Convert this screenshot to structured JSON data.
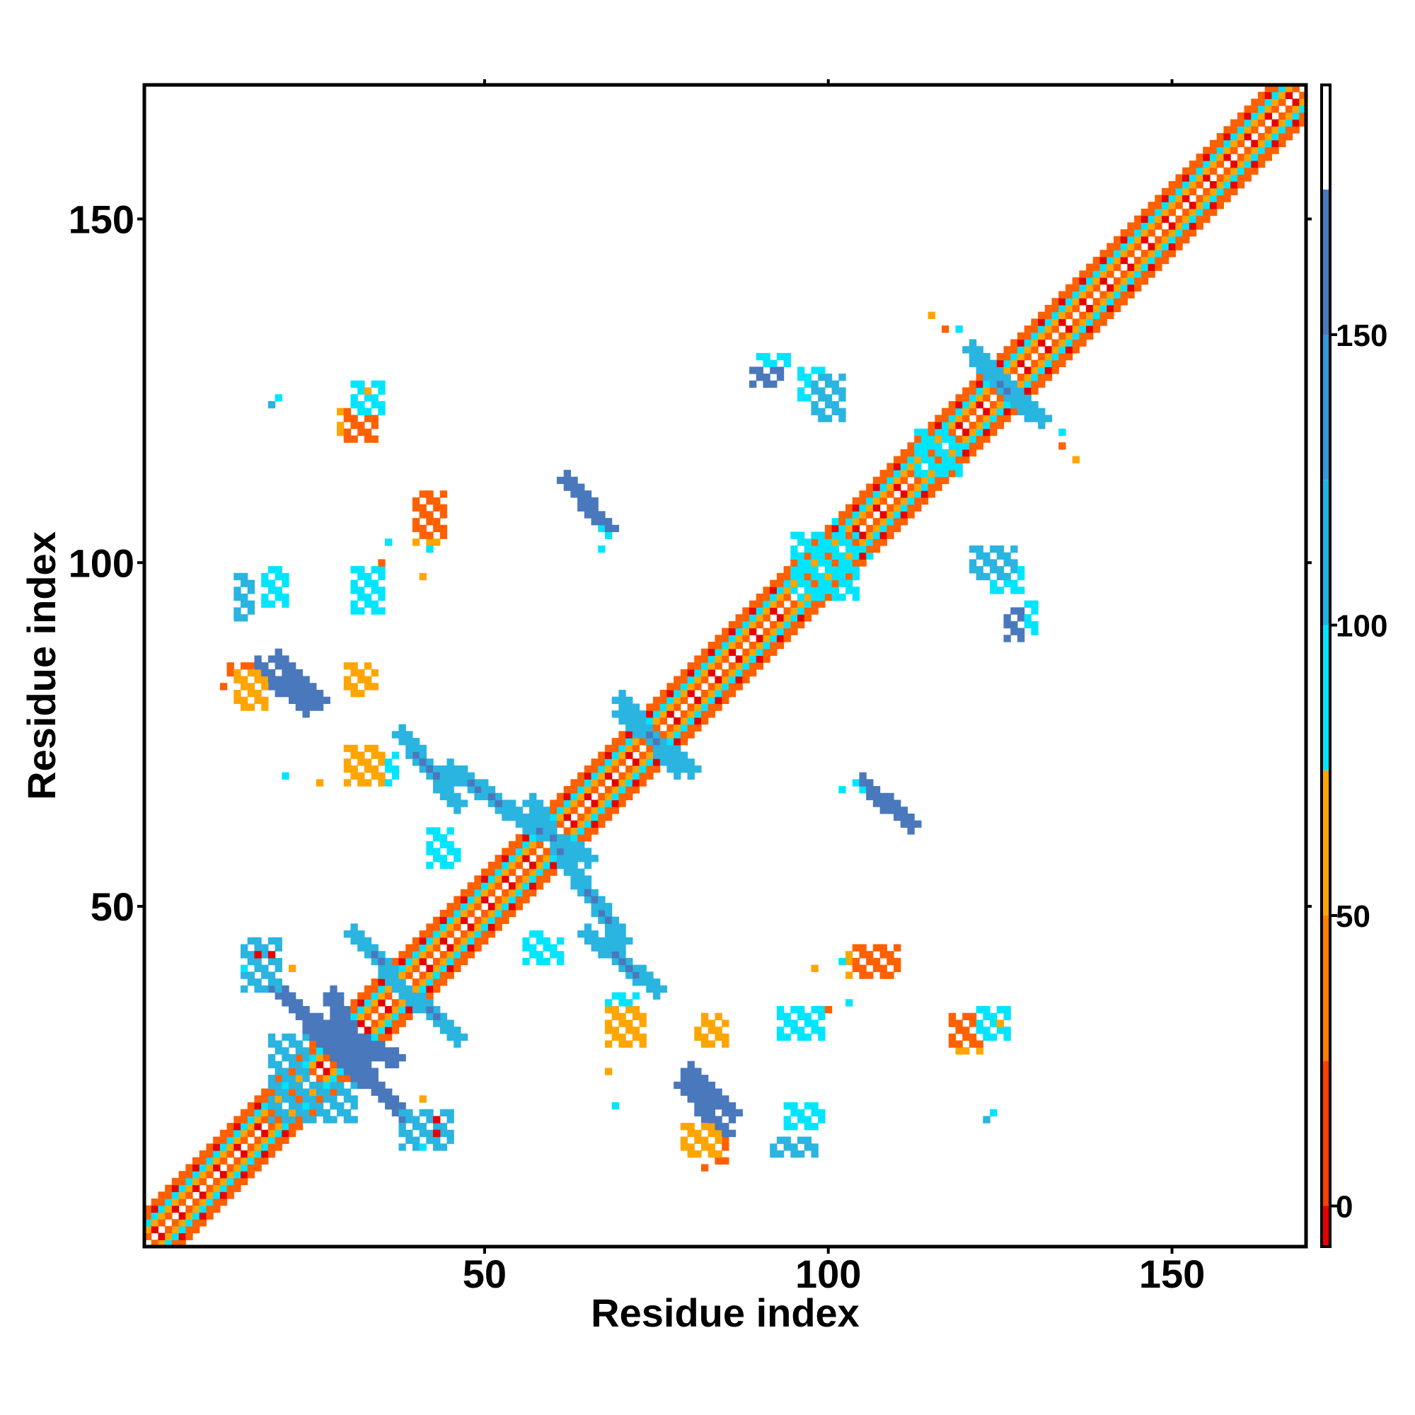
{
  "chart_data": {
    "type": "heatmap",
    "title": "",
    "xlabel": "Residue index",
    "ylabel": "Residue index",
    "xlim": [
      1,
      169
    ],
    "ylim": [
      1,
      169
    ],
    "x_ticks": [
      50,
      100,
      150
    ],
    "y_ticks": [
      50,
      100,
      150
    ],
    "grid": false,
    "symmetric": true,
    "colorbar": {
      "position": "right",
      "range": [
        -7,
        193
      ],
      "ticks": [
        0,
        50,
        100,
        150
      ],
      "bins": [
        {
          "from": -7,
          "to": 0,
          "color": "#e50000"
        },
        {
          "from": 0,
          "to": 25,
          "color": "#ff4000"
        },
        {
          "from": 25,
          "to": 50,
          "color": "#ff7f00"
        },
        {
          "from": 50,
          "to": 75,
          "color": "#ffa500"
        },
        {
          "from": 75,
          "to": 100,
          "color": "#00e5ff"
        },
        {
          "from": 100,
          "to": 125,
          "color": "#1eb4e6"
        },
        {
          "from": 125,
          "to": 150,
          "color": "#3399dd"
        },
        {
          "from": 150,
          "to": 175,
          "color": "#4a78bc"
        },
        {
          "from": 175,
          "to": 193,
          "color": "#ffffff"
        }
      ]
    },
    "colors": {
      "c0": "#ffffff",
      "c1": "#e50000",
      "c2": "#ff6000",
      "c3": "#ffa500",
      "c4": "#00e5ff",
      "c5": "#2ab4e0",
      "c6": "#4a78bc"
    },
    "diagonal_band": {
      "start": 1,
      "end": 169,
      "note": "pattern index per offset from diagonal (0 = self)",
      "pattern": [
        0,
        2,
        3,
        4,
        2,
        2
      ]
    },
    "blocks": [
      {
        "i": [
          19,
          24
        ],
        "j": [
          19,
          31
        ],
        "c": 5,
        "band": [
          13,
          19
        ]
      },
      {
        "i": [
          20,
          30
        ],
        "j": [
          27,
          38
        ],
        "c": 6,
        "anti": true
      },
      {
        "i": [
          28,
          33
        ],
        "j": [
          25,
          37
        ],
        "c": 6,
        "anti": true
      },
      {
        "i": [
          15,
          20
        ],
        "j": [
          38,
          45
        ],
        "c": 5
      },
      {
        "i": [
          31,
          40
        ],
        "j": [
          36,
          46
        ],
        "c": 5,
        "anti": true
      },
      {
        "i": [
          38,
          46
        ],
        "j": [
          65,
          75
        ],
        "c": 5,
        "anti": true
      },
      {
        "i": [
          20,
          26
        ],
        "j": [
          80,
          86
        ],
        "c": 6,
        "anti": true
      },
      {
        "i": [
          63,
          70
        ],
        "j": [
          45,
          55
        ],
        "c": 5,
        "anti": true
      },
      {
        "i": [
          79,
          85
        ],
        "j": [
          17,
          24
        ],
        "c": 6,
        "anti": true
      },
      {
        "i": [
          105,
          112
        ],
        "j": [
          62,
          68
        ],
        "c": 6,
        "anti": true
      },
      {
        "i": [
          62,
          68
        ],
        "j": [
          105,
          112
        ],
        "c": 6,
        "anti": true
      },
      {
        "i": [
          70,
          78
        ],
        "j": [
          70,
          80
        ],
        "c": 5,
        "anti": true
      },
      {
        "i": [
          57,
          63
        ],
        "j": [
          55,
          65
        ],
        "c": 5,
        "anti": true
      },
      {
        "i": [
          121,
          129
        ],
        "j": [
          122,
          131
        ],
        "c": 5,
        "anti": true
      },
      {
        "i": [
          113,
          118
        ],
        "j": [
          113,
          119
        ],
        "c": 4
      },
      {
        "i": [
          95,
          104
        ],
        "j": [
          96,
          104
        ],
        "c": 4
      },
      {
        "i": [
          90,
          94
        ],
        "j": [
          128,
          130
        ],
        "c": 4
      },
      {
        "i": [
          96,
          100
        ],
        "j": [
          124,
          128
        ],
        "c": 4
      },
      {
        "i": [
          121,
          127
        ],
        "j": [
          98,
          102
        ],
        "c": 5
      },
      {
        "i": [
          126,
          128
        ],
        "j": [
          89,
          93
        ],
        "c": 6
      },
      {
        "i": [
          94,
          99
        ],
        "j": [
          18,
          21
        ],
        "c": 4
      },
      {
        "i": [
          29,
          33
        ],
        "j": [
          118,
          122
        ],
        "c": 3
      },
      {
        "i": [
          40,
          44
        ],
        "j": [
          103,
          107
        ],
        "c": 3
      },
      {
        "i": [
          13,
          16
        ],
        "j": [
          83,
          85
        ],
        "c": 2
      },
      {
        "i": [
          30,
          33
        ],
        "j": [
          81,
          85
        ],
        "c": 3
      },
      {
        "i": [
          32,
          37
        ],
        "j": [
          68,
          72
        ],
        "c": 4
      },
      {
        "i": [
          42,
          45
        ],
        "j": [
          58,
          61
        ],
        "c": 4
      },
      {
        "i": [
          82,
          84
        ],
        "j": [
          30,
          34
        ],
        "c": 3
      },
      {
        "i": [
          68,
          73
        ],
        "j": [
          30,
          35
        ],
        "c": 3
      },
      {
        "i": [
          79,
          84
        ],
        "j": [
          14,
          18
        ],
        "c": 3
      },
      {
        "i": [
          92,
          98
        ],
        "j": [
          14,
          16
        ],
        "c": 5
      },
      {
        "i": [
          93,
          99
        ],
        "j": [
          31,
          35
        ],
        "c": 4
      },
      {
        "i": [
          104,
          110
        ],
        "j": [
          40,
          44
        ],
        "c": 2
      },
      {
        "i": [
          118,
          122
        ],
        "j": [
          30,
          34
        ],
        "c": 2
      },
      {
        "i": [
          122,
          126
        ],
        "j": [
          31,
          35
        ],
        "c": 4
      },
      {
        "i": [
          56,
          58
        ],
        "j": [
          42,
          46
        ],
        "c": 4
      }
    ],
    "dots": [
      {
        "i": 19,
        "j": 123,
        "c": 5
      },
      {
        "i": 17,
        "j": 43,
        "c": 1
      },
      {
        "i": 22,
        "j": 41,
        "c": 3
      },
      {
        "i": 68,
        "j": 26,
        "c": 3
      },
      {
        "i": 69,
        "j": 21,
        "c": 4
      },
      {
        "i": 75,
        "j": 76,
        "c": 2
      },
      {
        "i": 43,
        "j": 19,
        "c": 1
      },
      {
        "i": 41,
        "j": 15,
        "c": 4
      },
      {
        "i": 82,
        "j": 12,
        "c": 2
      },
      {
        "i": 124,
        "j": 20,
        "c": 4
      },
      {
        "i": 125,
        "j": 33,
        "c": 3
      },
      {
        "i": 98,
        "j": 41,
        "c": 3
      },
      {
        "i": 102,
        "j": 42,
        "c": 4
      },
      {
        "i": 117,
        "j": 134,
        "c": 2
      },
      {
        "i": 136,
        "j": 115,
        "c": 3
      },
      {
        "i": 134,
        "j": 119,
        "c": 4
      },
      {
        "i": 100,
        "j": 35,
        "c": 2
      },
      {
        "i": 103,
        "j": 36,
        "c": 4
      },
      {
        "i": 106,
        "j": 101,
        "c": 4
      },
      {
        "i": 104,
        "j": 68,
        "c": 4
      },
      {
        "i": 105,
        "j": 67,
        "c": 4
      },
      {
        "i": 67,
        "j": 102,
        "c": 4
      },
      {
        "i": 67,
        "j": 102,
        "c": 4
      }
    ]
  }
}
